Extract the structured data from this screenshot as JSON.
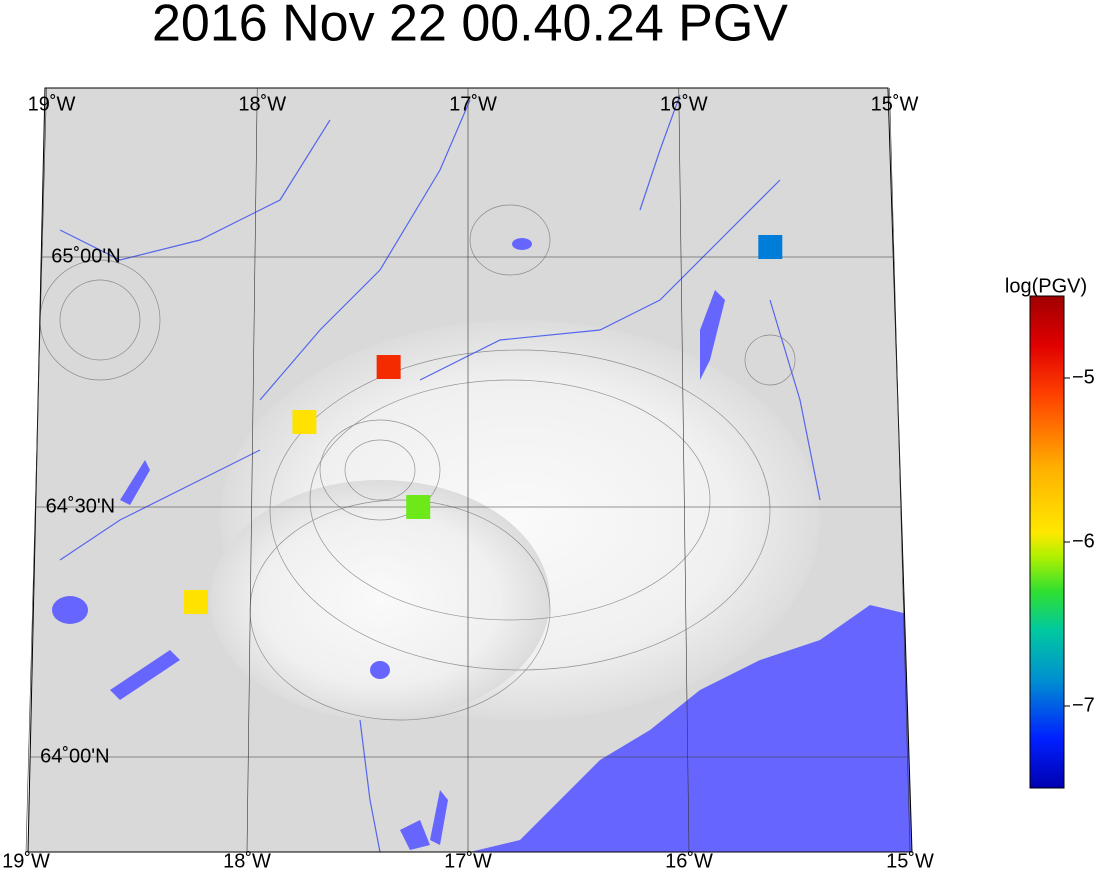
{
  "map": {
    "title": "2016 Nov 22 00.40.24 PGV",
    "lon_ticks": [
      {
        "value": -19,
        "label": "19˚W"
      },
      {
        "value": -18,
        "label": "18˚W"
      },
      {
        "value": -17,
        "label": "17˚W"
      },
      {
        "value": -16,
        "label": "16˚W"
      },
      {
        "value": -15,
        "label": "15˚W"
      }
    ],
    "lat_ticks": [
      {
        "value": 65,
        "label": "65˚00'N"
      },
      {
        "value": 64.5,
        "label": "64˚30'N"
      },
      {
        "value": 64,
        "label": "64˚00'N"
      }
    ],
    "stations": [
      {
        "lon": -17.37,
        "lat": 64.78,
        "log_pgv": -5.0
      },
      {
        "lon": -17.76,
        "lat": 64.67,
        "log_pgv": -5.9
      },
      {
        "lon": -17.23,
        "lat": 64.5,
        "log_pgv": -6.2
      },
      {
        "lon": -18.25,
        "lat": 64.31,
        "log_pgv": -5.9
      },
      {
        "lon": -15.58,
        "lat": 65.02,
        "log_pgv": -6.9
      }
    ],
    "colorbar": {
      "label": "log(PGV)",
      "clim": [
        -7.5,
        -4.5
      ],
      "ticks": [
        {
          "value": -5,
          "label": "−5"
        },
        {
          "value": -6,
          "label": "−6"
        },
        {
          "value": -7,
          "label": "−7"
        }
      ]
    }
  }
}
